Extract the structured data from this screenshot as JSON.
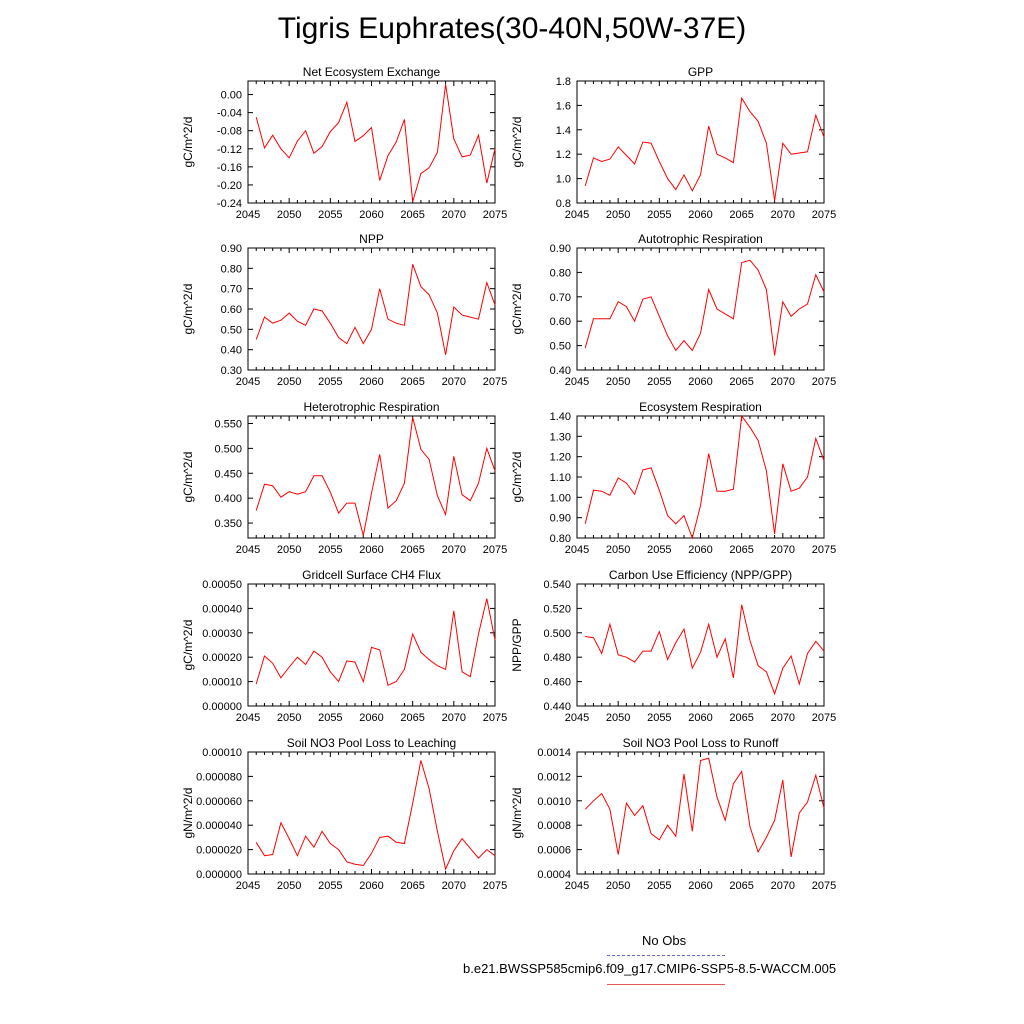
{
  "title": "Tigris Euphrates(30-40N,50W-37E)",
  "legend": {
    "obs_label": "No Obs",
    "obs_color": "#6666cc",
    "model_label": "b.e21.BWSSP585cmip6.f09_g17.CMIP6-SSP5-8.5-WACCM.005",
    "model_color": "#e8585a"
  },
  "series_color": "#ff0000",
  "chart_data": [
    {
      "type": "line",
      "title": "Net Ecosystem Exchange",
      "ylabel": "gC/m^2/d",
      "xlim": [
        2045,
        2075
      ],
      "ylim": [
        -0.24,
        0.03
      ],
      "xticks": [
        "2045",
        "2050",
        "2055",
        "2060",
        "2065",
        "2070",
        "2075"
      ],
      "yticks": [
        "0.00",
        "-0.04",
        "-0.08",
        "-0.12",
        "-0.16",
        "-0.20",
        "-0.24"
      ],
      "x": [
        2046,
        2047,
        2048,
        2049,
        2050,
        2051,
        2052,
        2053,
        2054,
        2055,
        2056,
        2057,
        2058,
        2059,
        2060,
        2061,
        2062,
        2063,
        2064,
        2065,
        2066,
        2067,
        2068,
        2069,
        2070,
        2071,
        2072,
        2073,
        2074,
        2075
      ],
      "y": [
        -0.05,
        -0.118,
        -0.09,
        -0.12,
        -0.14,
        -0.103,
        -0.08,
        -0.13,
        -0.115,
        -0.082,
        -0.062,
        -0.017,
        -0.104,
        -0.091,
        -0.073,
        -0.19,
        -0.135,
        -0.105,
        -0.055,
        -0.237,
        -0.175,
        -0.162,
        -0.128,
        0.023,
        -0.098,
        -0.138,
        -0.134,
        -0.09,
        -0.196,
        -0.12
      ]
    },
    {
      "type": "line",
      "title": "GPP",
      "ylabel": "gC/m^2/d",
      "xlim": [
        2045,
        2075
      ],
      "ylim": [
        0.8,
        1.8
      ],
      "xticks": [
        "2045",
        "2050",
        "2055",
        "2060",
        "2065",
        "2070",
        "2075"
      ],
      "yticks": [
        "0.8",
        "1.0",
        "1.2",
        "1.4",
        "1.6",
        "1.8"
      ],
      "x": [
        2046,
        2047,
        2048,
        2049,
        2050,
        2051,
        2052,
        2053,
        2054,
        2055,
        2056,
        2057,
        2058,
        2059,
        2060,
        2061,
        2062,
        2063,
        2064,
        2065,
        2066,
        2067,
        2068,
        2069,
        2070,
        2071,
        2072,
        2073,
        2074,
        2075
      ],
      "y": [
        0.94,
        1.17,
        1.14,
        1.16,
        1.26,
        1.19,
        1.12,
        1.3,
        1.29,
        1.14,
        1.0,
        0.91,
        1.03,
        0.9,
        1.03,
        1.43,
        1.2,
        1.17,
        1.13,
        1.66,
        1.55,
        1.47,
        1.29,
        0.82,
        1.29,
        1.2,
        1.21,
        1.22,
        1.52,
        1.34
      ]
    },
    {
      "type": "line",
      "title": "NPP",
      "ylabel": "gC/m^2/d",
      "xlim": [
        2045,
        2075
      ],
      "ylim": [
        0.3,
        0.9
      ],
      "xticks": [
        "2045",
        "2050",
        "2055",
        "2060",
        "2065",
        "2070",
        "2075"
      ],
      "yticks": [
        "0.30",
        "0.40",
        "0.50",
        "0.60",
        "0.70",
        "0.80",
        "0.90"
      ],
      "x": [
        2046,
        2047,
        2048,
        2049,
        2050,
        2051,
        2052,
        2053,
        2054,
        2055,
        2056,
        2057,
        2058,
        2059,
        2060,
        2061,
        2062,
        2063,
        2064,
        2065,
        2066,
        2067,
        2068,
        2069,
        2070,
        2071,
        2072,
        2073,
        2074,
        2075
      ],
      "y": [
        0.45,
        0.56,
        0.53,
        0.545,
        0.58,
        0.54,
        0.52,
        0.6,
        0.59,
        0.53,
        0.46,
        0.43,
        0.51,
        0.43,
        0.5,
        0.7,
        0.55,
        0.53,
        0.52,
        0.82,
        0.71,
        0.67,
        0.58,
        0.375,
        0.61,
        0.57,
        0.56,
        0.55,
        0.73,
        0.62
      ]
    },
    {
      "type": "line",
      "title": "Autotrophic Respiration",
      "ylabel": "gC/m^2/d",
      "xlim": [
        2045,
        2075
      ],
      "ylim": [
        0.4,
        0.9
      ],
      "xticks": [
        "2045",
        "2050",
        "2055",
        "2060",
        "2065",
        "2070",
        "2075"
      ],
      "yticks": [
        "0.40",
        "0.50",
        "0.60",
        "0.70",
        "0.80",
        "0.90"
      ],
      "x": [
        2046,
        2047,
        2048,
        2049,
        2050,
        2051,
        2052,
        2053,
        2054,
        2055,
        2056,
        2057,
        2058,
        2059,
        2060,
        2061,
        2062,
        2063,
        2064,
        2065,
        2066,
        2067,
        2068,
        2069,
        2070,
        2071,
        2072,
        2073,
        2074,
        2075
      ],
      "y": [
        0.49,
        0.61,
        0.61,
        0.61,
        0.68,
        0.66,
        0.6,
        0.69,
        0.7,
        0.62,
        0.54,
        0.48,
        0.52,
        0.48,
        0.55,
        0.73,
        0.65,
        0.63,
        0.61,
        0.84,
        0.85,
        0.81,
        0.73,
        0.46,
        0.68,
        0.62,
        0.65,
        0.67,
        0.79,
        0.72
      ]
    },
    {
      "type": "line",
      "title": "Heterotrophic Respiration",
      "ylabel": "gC/m^2/d",
      "xlim": [
        2045,
        2075
      ],
      "ylim": [
        0.32,
        0.565
      ],
      "xticks": [
        "2045",
        "2050",
        "2055",
        "2060",
        "2065",
        "2070",
        "2075"
      ],
      "yticks": [
        "0.350",
        "0.400",
        "0.450",
        "0.500",
        "0.550"
      ],
      "x": [
        2046,
        2047,
        2048,
        2049,
        2050,
        2051,
        2052,
        2053,
        2054,
        2055,
        2056,
        2057,
        2058,
        2059,
        2060,
        2061,
        2062,
        2063,
        2064,
        2065,
        2066,
        2067,
        2068,
        2069,
        2070,
        2071,
        2072,
        2073,
        2074,
        2075
      ],
      "y": [
        0.375,
        0.428,
        0.425,
        0.402,
        0.413,
        0.408,
        0.413,
        0.445,
        0.445,
        0.412,
        0.37,
        0.39,
        0.39,
        0.325,
        0.41,
        0.488,
        0.38,
        0.395,
        0.43,
        0.562,
        0.498,
        0.478,
        0.405,
        0.367,
        0.484,
        0.407,
        0.395,
        0.43,
        0.5,
        0.455
      ]
    },
    {
      "type": "line",
      "title": "Ecosystem Respiration",
      "ylabel": "gC/m^2/d",
      "xlim": [
        2045,
        2075
      ],
      "ylim": [
        0.8,
        1.4
      ],
      "xticks": [
        "2045",
        "2050",
        "2055",
        "2060",
        "2065",
        "2070",
        "2075"
      ],
      "yticks": [
        "0.80",
        "0.90",
        "1.00",
        "1.10",
        "1.20",
        "1.30",
        "1.40"
      ],
      "x": [
        2046,
        2047,
        2048,
        2049,
        2050,
        2051,
        2052,
        2053,
        2054,
        2055,
        2056,
        2057,
        2058,
        2059,
        2060,
        2061,
        2062,
        2063,
        2064,
        2065,
        2066,
        2067,
        2068,
        2069,
        2070,
        2071,
        2072,
        2073,
        2074,
        2075
      ],
      "y": [
        0.87,
        1.035,
        1.03,
        1.01,
        1.095,
        1.07,
        1.015,
        1.135,
        1.145,
        1.035,
        0.91,
        0.87,
        0.91,
        0.8,
        0.96,
        1.215,
        1.03,
        1.03,
        1.04,
        1.4,
        1.345,
        1.28,
        1.13,
        0.82,
        1.165,
        1.03,
        1.045,
        1.1,
        1.29,
        1.18
      ]
    },
    {
      "type": "line",
      "title": "Gridcell Surface CH4 Flux",
      "ylabel": "gC/m^2/d",
      "xlim": [
        2045,
        2075
      ],
      "ylim": [
        0.0,
        0.0005
      ],
      "xticks": [
        "2045",
        "2050",
        "2055",
        "2060",
        "2065",
        "2070",
        "2075"
      ],
      "yticks": [
        "0.00000",
        "0.00010",
        "0.00020",
        "0.00030",
        "0.00040",
        "0.00050"
      ],
      "x": [
        2046,
        2047,
        2048,
        2049,
        2050,
        2051,
        2052,
        2053,
        2054,
        2055,
        2056,
        2057,
        2058,
        2059,
        2060,
        2061,
        2062,
        2063,
        2064,
        2065,
        2066,
        2067,
        2068,
        2069,
        2070,
        2071,
        2072,
        2073,
        2074,
        2075
      ],
      "y": [
        9e-05,
        0.000205,
        0.000175,
        0.000115,
        0.00016,
        0.0002,
        0.00017,
        0.000225,
        0.0002,
        0.00014,
        0.0001,
        0.000185,
        0.00018,
        0.0001,
        0.00024,
        0.00023,
        8.5e-05,
        0.0001,
        0.00015,
        0.000295,
        0.00022,
        0.00019,
        0.000165,
        0.00015,
        0.00039,
        0.00014,
        0.00012,
        0.000295,
        0.00044,
        0.00027
      ]
    },
    {
      "type": "line",
      "title": "Carbon Use Efficiency (NPP/GPP)",
      "ylabel": "NPP/GPP",
      "xlim": [
        2045,
        2075
      ],
      "ylim": [
        0.44,
        0.54
      ],
      "xticks": [
        "2045",
        "2050",
        "2055",
        "2060",
        "2065",
        "2070",
        "2075"
      ],
      "yticks": [
        "0.440",
        "0.460",
        "0.480",
        "0.500",
        "0.520",
        "0.540"
      ],
      "x": [
        2046,
        2047,
        2048,
        2049,
        2050,
        2051,
        2052,
        2053,
        2054,
        2055,
        2056,
        2057,
        2058,
        2059,
        2060,
        2061,
        2062,
        2063,
        2064,
        2065,
        2066,
        2067,
        2068,
        2069,
        2070,
        2071,
        2072,
        2073,
        2074,
        2075
      ],
      "y": [
        0.497,
        0.496,
        0.483,
        0.507,
        0.482,
        0.48,
        0.476,
        0.485,
        0.485,
        0.501,
        0.478,
        0.492,
        0.503,
        0.471,
        0.484,
        0.507,
        0.48,
        0.495,
        0.463,
        0.523,
        0.494,
        0.473,
        0.468,
        0.45,
        0.471,
        0.481,
        0.458,
        0.483,
        0.493,
        0.485
      ]
    },
    {
      "type": "line",
      "title": "Soil NO3 Pool Loss to Leaching",
      "ylabel": "gN/m^2/d",
      "xlim": [
        2045,
        2075
      ],
      "ylim": [
        0.0,
        0.0001
      ],
      "xticks": [
        "2045",
        "2050",
        "2055",
        "2060",
        "2065",
        "2070",
        "2075"
      ],
      "yticks": [
        "0.000000",
        "0.000020",
        "0.000040",
        "0.000060",
        "0.000080",
        "0.00010"
      ],
      "x": [
        2046,
        2047,
        2048,
        2049,
        2050,
        2051,
        2052,
        2053,
        2054,
        2055,
        2056,
        2057,
        2058,
        2059,
        2060,
        2061,
        2062,
        2063,
        2064,
        2065,
        2066,
        2067,
        2068,
        2069,
        2070,
        2071,
        2072,
        2073,
        2074,
        2075
      ],
      "y": [
        2.6e-05,
        1.5e-05,
        1.6e-05,
        4.2e-05,
        2.9e-05,
        1.5e-05,
        3.1e-05,
        2.2e-05,
        3.5e-05,
        2.5e-05,
        2e-05,
        1e-05,
        8e-06,
        7e-06,
        1.7e-05,
        3e-05,
        3.1e-05,
        2.6e-05,
        2.5e-05,
        5.8e-05,
        9.3e-05,
        7e-05,
        3.5e-05,
        4e-06,
        1.9e-05,
        2.9e-05,
        2.1e-05,
        1.3e-05,
        2e-05,
        1.5e-05
      ]
    },
    {
      "type": "line",
      "title": "Soil NO3 Pool Loss to Runoff",
      "ylabel": "gN/m^2/d",
      "xlim": [
        2045,
        2075
      ],
      "ylim": [
        0.0004,
        0.0014
      ],
      "xticks": [
        "2045",
        "2050",
        "2055",
        "2060",
        "2065",
        "2070",
        "2075"
      ],
      "yticks": [
        "0.0004",
        "0.0006",
        "0.0008",
        "0.0010",
        "0.0012",
        "0.0014"
      ],
      "x": [
        2046,
        2047,
        2048,
        2049,
        2050,
        2051,
        2052,
        2053,
        2054,
        2055,
        2056,
        2057,
        2058,
        2059,
        2060,
        2061,
        2062,
        2063,
        2064,
        2065,
        2066,
        2067,
        2068,
        2069,
        2070,
        2071,
        2072,
        2073,
        2074,
        2075
      ],
      "y": [
        0.00093,
        0.001,
        0.00106,
        0.00093,
        0.00056,
        0.00098,
        0.00088,
        0.00096,
        0.00073,
        0.00068,
        0.0008,
        0.00071,
        0.00122,
        0.00075,
        0.00133,
        0.00135,
        0.00103,
        0.00084,
        0.00114,
        0.00124,
        0.00079,
        0.00058,
        0.0007,
        0.00084,
        0.00117,
        0.00054,
        0.0009,
        0.00099,
        0.00121,
        0.00094
      ]
    }
  ]
}
